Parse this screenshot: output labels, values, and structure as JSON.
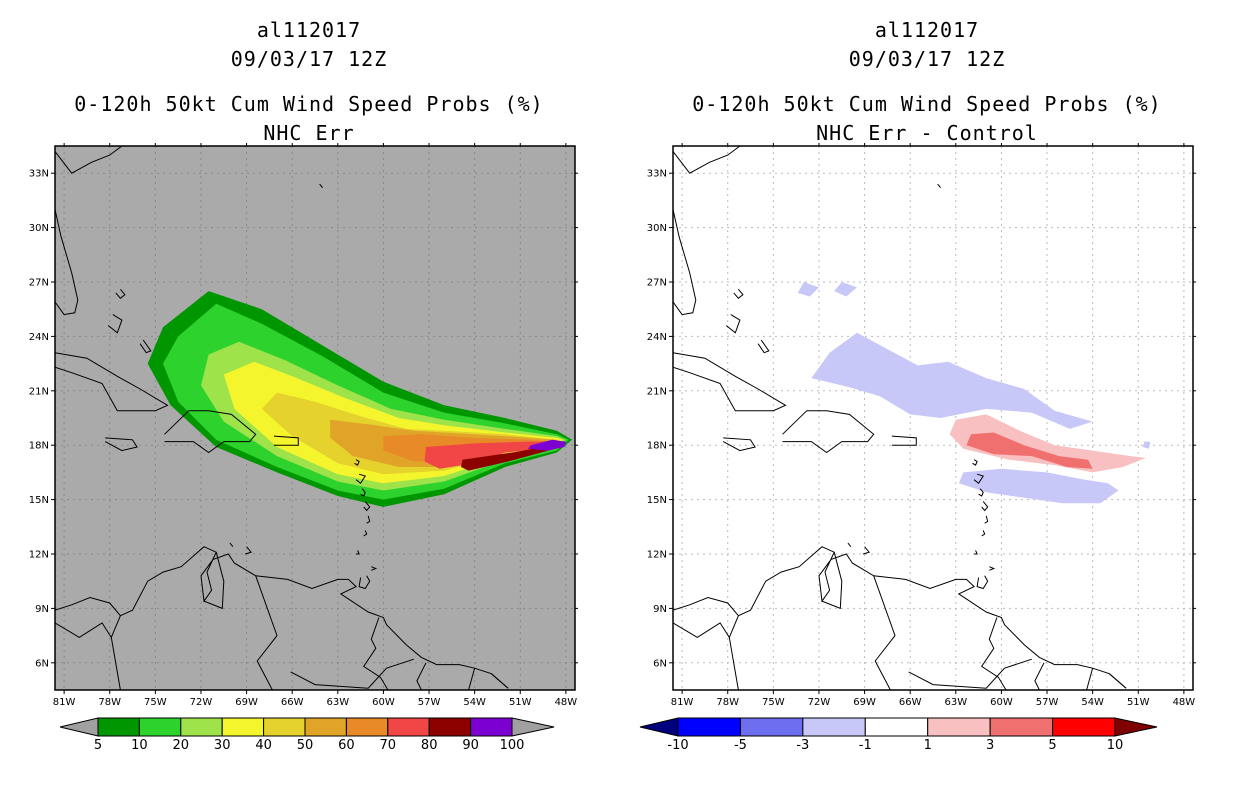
{
  "panels": [
    {
      "storm_id": "al112017",
      "datetime": "09/03/17 12Z",
      "title": "0-120h 50kt Cum Wind Speed Probs (%)",
      "subtitle": "NHC Err",
      "background": "#aaaaaa",
      "colorbar": {
        "labels": [
          "5",
          "10",
          "20",
          "30",
          "40",
          "50",
          "60",
          "70",
          "80",
          "90",
          "100"
        ],
        "colors": [
          "#009600",
          "#2dd22d",
          "#9ee34a",
          "#f5f52d",
          "#e5d22d",
          "#e0a528",
          "#e88a28",
          "#f04646",
          "#8c0000",
          "#7d00d2"
        ],
        "under_color": "#a0a0a0",
        "over_color": "#a0a0a0"
      }
    },
    {
      "storm_id": "al112017",
      "datetime": "09/03/17 12Z",
      "title": "0-120h 50kt Cum Wind Speed Probs (%)",
      "subtitle": "NHC Err - Control",
      "background": "#ffffff",
      "colorbar": {
        "labels": [
          "-10",
          "-5",
          "-3",
          "-1",
          "1",
          "3",
          "5",
          "10"
        ],
        "colors": [
          "#0000ff",
          "#6e6ef0",
          "#c8c8f8",
          "#ffffff",
          "#f8c0c0",
          "#f07070",
          "#ff0000"
        ],
        "under_color": "#00007f",
        "over_color": "#7f0000"
      }
    }
  ],
  "axes": {
    "lon_labels": [
      "81W",
      "78W",
      "75W",
      "72W",
      "69W",
      "66W",
      "63W",
      "60W",
      "57W",
      "54W",
      "51W",
      "48W"
    ],
    "lat_labels": [
      "33N",
      "30N",
      "27N",
      "24N",
      "21N",
      "18N",
      "15N",
      "12N",
      "9N",
      "6N"
    ],
    "lon_values": [
      -81,
      -78,
      -75,
      -72,
      -69,
      -66,
      -63,
      -60,
      -57,
      -54,
      -51,
      -48
    ],
    "lat_values": [
      33,
      30,
      27,
      24,
      21,
      18,
      15,
      12,
      9,
      6
    ]
  },
  "chart_data": [
    {
      "type": "heatmap",
      "title": "0-120h 50kt Cum Wind Speed Probs (%)",
      "subtitle": "NHC Err",
      "xlim": [
        -81.6,
        -47.4
      ],
      "ylim": [
        4.5,
        34.5
      ],
      "contours": [
        {
          "level": 5,
          "color": "#009600",
          "points": [
            [
              -74.5,
              24.5
            ],
            [
              -71.5,
              26.5
            ],
            [
              -68,
              25.5
            ],
            [
              -64,
              23.5
            ],
            [
              -60,
              21.5
            ],
            [
              -56,
              20.2
            ],
            [
              -52,
              19.5
            ],
            [
              -48.6,
              18.8
            ],
            [
              -47.6,
              18.3
            ],
            [
              -48.6,
              17.6
            ],
            [
              -52,
              16.8
            ],
            [
              -56,
              15.3
            ],
            [
              -60,
              14.6
            ],
            [
              -63,
              15.2
            ],
            [
              -67,
              16.5
            ],
            [
              -71,
              17.9
            ],
            [
              -74,
              20.2
            ],
            [
              -75.5,
              22.5
            ]
          ]
        },
        {
          "level": 10,
          "color": "#2dd22d",
          "points": [
            [
              -73.5,
              24
            ],
            [
              -71,
              25.8
            ],
            [
              -68,
              24.7
            ],
            [
              -64,
              22.9
            ],
            [
              -60,
              20.9
            ],
            [
              -56,
              19.8
            ],
            [
              -52,
              19.2
            ],
            [
              -48.6,
              18.6
            ],
            [
              -47.8,
              18.3
            ],
            [
              -48.6,
              17.7
            ],
            [
              -52,
              17
            ],
            [
              -56,
              15.6
            ],
            [
              -60,
              15
            ],
            [
              -63,
              15.5
            ],
            [
              -67,
              16.8
            ],
            [
              -71,
              18.3
            ],
            [
              -73.5,
              20.4
            ],
            [
              -74.5,
              22.5
            ]
          ]
        },
        {
          "level": 20,
          "color": "#9ee34a",
          "points": [
            [
              -71.5,
              23
            ],
            [
              -69.5,
              23.7
            ],
            [
              -66.5,
              22.7
            ],
            [
              -63,
              21.3
            ],
            [
              -59.5,
              20
            ],
            [
              -56,
              19.4
            ],
            [
              -52,
              18.9
            ],
            [
              -48.6,
              18.5
            ],
            [
              -48,
              18.3
            ],
            [
              -48.6,
              17.8
            ],
            [
              -52,
              17.2
            ],
            [
              -56,
              16
            ],
            [
              -60,
              15.5
            ],
            [
              -63,
              16
            ],
            [
              -67,
              17.4
            ],
            [
              -70.5,
              19.3
            ],
            [
              -72,
              21.3
            ]
          ]
        },
        {
          "level": 30,
          "color": "#f5f52d",
          "points": [
            [
              -70.5,
              21.9
            ],
            [
              -68.5,
              22.6
            ],
            [
              -66,
              21.8
            ],
            [
              -62.5,
              20.6
            ],
            [
              -59,
              19.5
            ],
            [
              -56,
              19.1
            ],
            [
              -52,
              18.7
            ],
            [
              -48.6,
              18.4
            ],
            [
              -48.2,
              18.3
            ],
            [
              -48.6,
              17.9
            ],
            [
              -52,
              17.4
            ],
            [
              -56,
              16.3
            ],
            [
              -60,
              15.9
            ],
            [
              -63,
              16.4
            ],
            [
              -67,
              17.9
            ],
            [
              -69.8,
              20
            ]
          ]
        },
        {
          "level": 40,
          "color": "#e5d22d",
          "points": [
            [
              -67,
              20.9
            ],
            [
              -64.5,
              20.4
            ],
            [
              -61.5,
              19.6
            ],
            [
              -58.5,
              18.9
            ],
            [
              -56,
              18.8
            ],
            [
              -52,
              18.6
            ],
            [
              -48.6,
              18.3
            ],
            [
              -48.6,
              17.9
            ],
            [
              -52,
              17.5
            ],
            [
              -56,
              16.6
            ],
            [
              -60,
              16.4
            ],
            [
              -63,
              17
            ],
            [
              -66,
              18.5
            ],
            [
              -68,
              20
            ]
          ]
        },
        {
          "level": 50,
          "color": "#e0a528",
          "points": [
            [
              -63.5,
              19.4
            ],
            [
              -60.5,
              19.1
            ],
            [
              -58,
              18.8
            ],
            [
              -56,
              18.7
            ],
            [
              -52,
              18.5
            ],
            [
              -48.6,
              18.3
            ],
            [
              -48.6,
              17.9
            ],
            [
              -52,
              17.6
            ],
            [
              -56,
              16.8
            ],
            [
              -59,
              16.8
            ],
            [
              -62,
              17.4
            ],
            [
              -63.5,
              18.4
            ]
          ]
        },
        {
          "level": 60,
          "color": "#e88a28",
          "points": [
            [
              -60,
              18.5
            ],
            [
              -57.5,
              18.6
            ],
            [
              -54,
              18.4
            ],
            [
              -50.5,
              18.3
            ],
            [
              -48.6,
              18.2
            ],
            [
              -48.6,
              17.9
            ],
            [
              -52,
              17.7
            ],
            [
              -55,
              17.1
            ],
            [
              -58,
              17.1
            ],
            [
              -60,
              17.7
            ]
          ]
        },
        {
          "level": 70,
          "color": "#f04646",
          "points": [
            [
              -57.2,
              17.9
            ],
            [
              -54,
              18.1
            ],
            [
              -50.5,
              18.2
            ],
            [
              -48.6,
              18.2
            ],
            [
              -48.6,
              17.9
            ],
            [
              -52,
              17.6
            ],
            [
              -54,
              17
            ],
            [
              -56.3,
              16.7
            ],
            [
              -57.3,
              17.1
            ]
          ]
        },
        {
          "level": 80,
          "color": "#8c0000",
          "points": [
            [
              -54.8,
              17.2
            ],
            [
              -51.5,
              17.6
            ],
            [
              -49.5,
              17.9
            ],
            [
              -48.6,
              18
            ],
            [
              -48.7,
              17.8
            ],
            [
              -51.8,
              17.1
            ],
            [
              -54.4,
              16.6
            ],
            [
              -54.9,
              16.8
            ]
          ]
        },
        {
          "level": 90,
          "color": "#7d00d2",
          "points": [
            [
              -50.3,
              18
            ],
            [
              -48.9,
              18.3
            ],
            [
              -48,
              18.2
            ],
            [
              -48.1,
              17.9
            ],
            [
              -49.2,
              17.7
            ],
            [
              -50.5,
              17.8
            ]
          ]
        }
      ]
    },
    {
      "type": "heatmap",
      "title": "0-120h 50kt Cum Wind Speed Probs (%)",
      "subtitle": "NHC Err - Control",
      "xlim": [
        -81.6,
        -47.4
      ],
      "ylim": [
        4.5,
        34.5
      ],
      "contours": [
        {
          "level": -3,
          "color": "#c8c8f8",
          "points": [
            [
              -71.3,
              23.1
            ],
            [
              -69.5,
              24.2
            ],
            [
              -67.5,
              23.3
            ],
            [
              -65.5,
              22.4
            ],
            [
              -63.5,
              22.6
            ],
            [
              -61,
              21.7
            ],
            [
              -58.5,
              21.1
            ],
            [
              -56.5,
              19.9
            ],
            [
              -54,
              19.3
            ],
            [
              -55.5,
              18.9
            ],
            [
              -58,
              19.8
            ],
            [
              -61,
              20
            ],
            [
              -64,
              19.5
            ],
            [
              -66,
              19.7
            ],
            [
              -68,
              20.7
            ],
            [
              -70,
              21.2
            ],
            [
              -72.5,
              21.7
            ]
          ]
        },
        {
          "level": -3,
          "color": "#c8c8f8",
          "points": [
            [
              -73,
              27
            ],
            [
              -72,
              26.7
            ],
            [
              -72.6,
              26.2
            ],
            [
              -73.4,
              26.4
            ]
          ]
        },
        {
          "level": -3,
          "color": "#c8c8f8",
          "points": [
            [
              -70.5,
              27
            ],
            [
              -69.5,
              26.7
            ],
            [
              -70.2,
              26.2
            ],
            [
              -71,
              26.5
            ]
          ]
        },
        {
          "level": -3,
          "color": "#c8c8f8",
          "points": [
            [
              -62.5,
              16.5
            ],
            [
              -60,
              16.7
            ],
            [
              -57,
              16.5
            ],
            [
              -54.5,
              16.1
            ],
            [
              -53,
              15.9
            ],
            [
              -52.3,
              15.5
            ],
            [
              -53.5,
              14.8
            ],
            [
              -56,
              14.8
            ],
            [
              -58.5,
              15.1
            ],
            [
              -61,
              15.4
            ],
            [
              -62.8,
              15.9
            ]
          ]
        },
        {
          "level": -3,
          "color": "#c8c8f8",
          "points": [
            [
              -50.6,
              18.2
            ],
            [
              -50.2,
              18.2
            ],
            [
              -50.3,
              17.8
            ],
            [
              -50.7,
              17.9
            ]
          ]
        },
        {
          "level": 1,
          "color": "#f8c0c0",
          "points": [
            [
              -63,
              19.4
            ],
            [
              -61,
              19.7
            ],
            [
              -58.8,
              18.8
            ],
            [
              -56.5,
              18
            ],
            [
              -54,
              17.7
            ],
            [
              -51.5,
              17.4
            ],
            [
              -50.5,
              17.3
            ],
            [
              -52,
              16.8
            ],
            [
              -54,
              16.5
            ],
            [
              -56.5,
              16.9
            ],
            [
              -59.5,
              17.2
            ],
            [
              -62.5,
              17.8
            ],
            [
              -63.4,
              18.6
            ]
          ]
        },
        {
          "level": 3,
          "color": "#f07070",
          "points": [
            [
              -62,
              18.6
            ],
            [
              -60.5,
              18.7
            ],
            [
              -58.5,
              18
            ],
            [
              -56.2,
              17.4
            ],
            [
              -54.3,
              17.2
            ],
            [
              -54,
              16.7
            ],
            [
              -55.7,
              16.8
            ],
            [
              -58,
              17.4
            ],
            [
              -60.5,
              17.5
            ],
            [
              -62.3,
              18
            ]
          ]
        }
      ]
    }
  ]
}
